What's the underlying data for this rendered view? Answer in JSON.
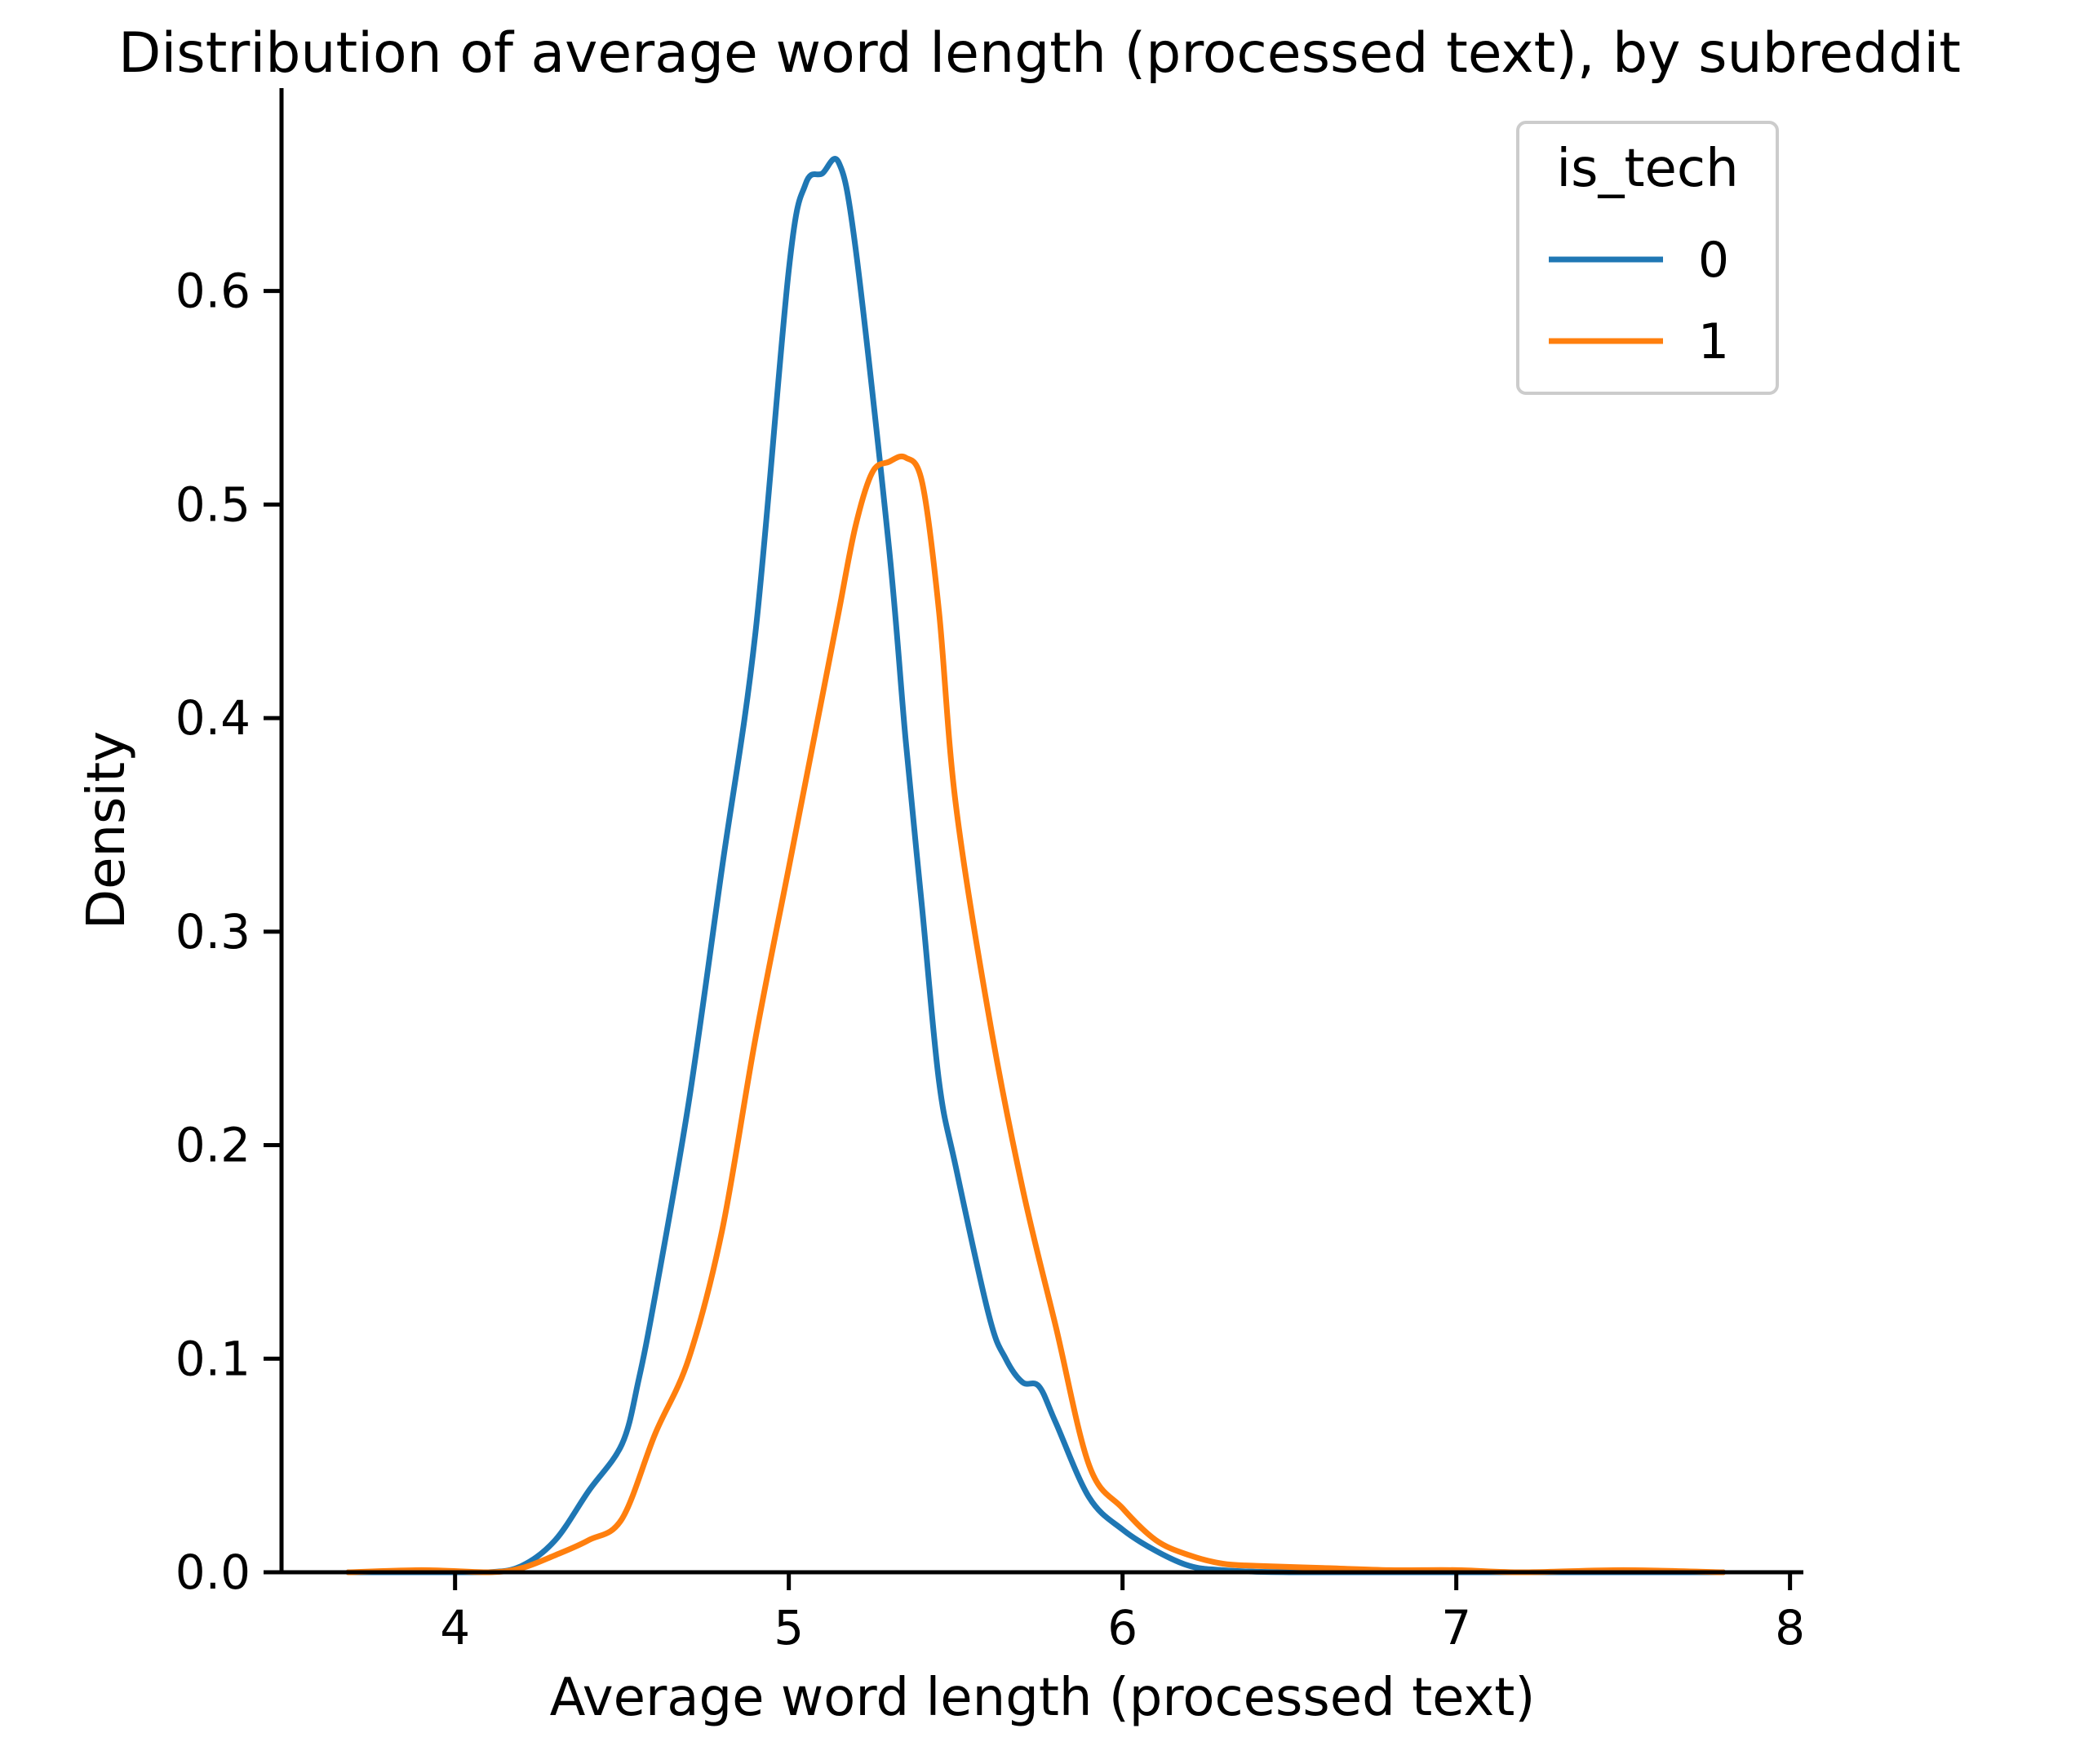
{
  "chart_data": {
    "type": "line",
    "title": "Distribution of average word length (processed text), by subreddit",
    "xlabel": "Average word length (processed text)",
    "ylabel": "Density",
    "xlim": [
      3.48,
      8.04
    ],
    "ylim": [
      0,
      0.695
    ],
    "xticks": [
      4,
      5,
      6,
      7,
      8
    ],
    "yticks": [
      0.0,
      0.1,
      0.2,
      0.3,
      0.4,
      0.5,
      0.6
    ],
    "xtick_labels": [
      "4",
      "5",
      "6",
      "7",
      "8"
    ],
    "ytick_labels": [
      "0.0",
      "0.1",
      "0.2",
      "0.3",
      "0.4",
      "0.5",
      "0.6"
    ],
    "grid": false,
    "legend": {
      "title": "is_tech",
      "placement": "top-right"
    },
    "series": [
      {
        "name": "0",
        "color": "#1f77b4",
        "points": [
          [
            3.68,
            0.0
          ],
          [
            3.9,
            0.0
          ],
          [
            4.1,
            0.0
          ],
          [
            4.2,
            0.003
          ],
          [
            4.3,
            0.015
          ],
          [
            4.4,
            0.038
          ],
          [
            4.5,
            0.06
          ],
          [
            4.55,
            0.09
          ],
          [
            4.6,
            0.13
          ],
          [
            4.7,
            0.22
          ],
          [
            4.8,
            0.33
          ],
          [
            4.9,
            0.44
          ],
          [
            5.0,
            0.61
          ],
          [
            5.05,
            0.65
          ],
          [
            5.1,
            0.655
          ],
          [
            5.15,
            0.66
          ],
          [
            5.2,
            0.62
          ],
          [
            5.3,
            0.48
          ],
          [
            5.35,
            0.39
          ],
          [
            5.4,
            0.31
          ],
          [
            5.45,
            0.23
          ],
          [
            5.5,
            0.19
          ],
          [
            5.6,
            0.12
          ],
          [
            5.65,
            0.1
          ],
          [
            5.7,
            0.089
          ],
          [
            5.75,
            0.087
          ],
          [
            5.8,
            0.07
          ],
          [
            5.9,
            0.035
          ],
          [
            6.0,
            0.02
          ],
          [
            6.1,
            0.01
          ],
          [
            6.2,
            0.003
          ],
          [
            6.3,
            0.001
          ],
          [
            6.5,
            0.0
          ],
          [
            7.0,
            0.0
          ],
          [
            7.5,
            0.0
          ],
          [
            7.8,
            0.0
          ]
        ]
      },
      {
        "name": "1",
        "color": "#ff7f0e",
        "points": [
          [
            3.68,
            0.0
          ],
          [
            3.9,
            0.001
          ],
          [
            4.1,
            0.0
          ],
          [
            4.2,
            0.002
          ],
          [
            4.3,
            0.008
          ],
          [
            4.4,
            0.015
          ],
          [
            4.5,
            0.025
          ],
          [
            4.6,
            0.065
          ],
          [
            4.7,
            0.1
          ],
          [
            4.8,
            0.16
          ],
          [
            4.9,
            0.25
          ],
          [
            5.0,
            0.33
          ],
          [
            5.1,
            0.41
          ],
          [
            5.15,
            0.45
          ],
          [
            5.2,
            0.49
          ],
          [
            5.25,
            0.515
          ],
          [
            5.3,
            0.52
          ],
          [
            5.35,
            0.522
          ],
          [
            5.4,
            0.51
          ],
          [
            5.45,
            0.45
          ],
          [
            5.5,
            0.36
          ],
          [
            5.6,
            0.26
          ],
          [
            5.7,
            0.18
          ],
          [
            5.8,
            0.115
          ],
          [
            5.9,
            0.05
          ],
          [
            6.0,
            0.03
          ],
          [
            6.1,
            0.015
          ],
          [
            6.2,
            0.008
          ],
          [
            6.3,
            0.004
          ],
          [
            6.4,
            0.003
          ],
          [
            6.6,
            0.002
          ],
          [
            6.8,
            0.001
          ],
          [
            7.0,
            0.001
          ],
          [
            7.2,
            0.0
          ],
          [
            7.5,
            0.001
          ],
          [
            7.8,
            0.0
          ]
        ]
      }
    ]
  }
}
